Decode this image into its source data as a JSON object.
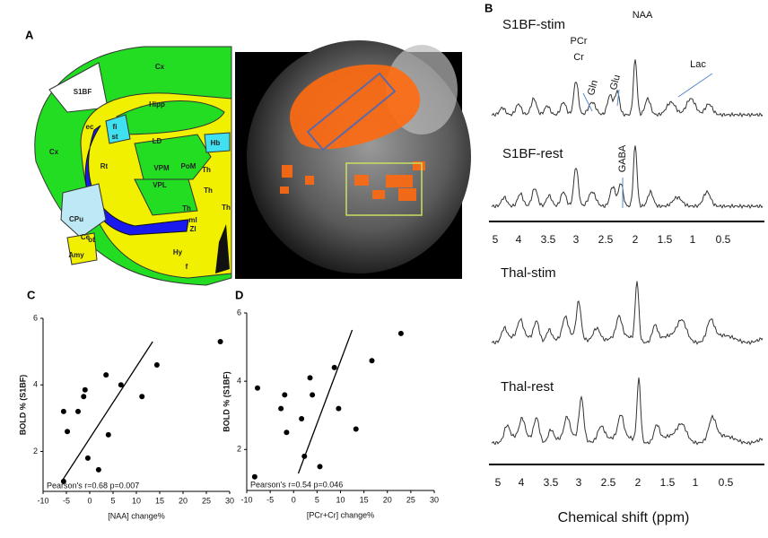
{
  "panels": [
    "A",
    "B",
    "C",
    "D"
  ],
  "atlas_labels": [
    "Cx",
    "S1BF",
    "Hipp",
    "ec",
    "fi",
    "st",
    "LD",
    "Hb",
    "Rt",
    "VPM",
    "PoM",
    "VPL",
    "Th",
    "Th",
    "Th",
    "Th",
    "Cx",
    "CPu",
    "Ce",
    "ml",
    "ZI",
    "Amy",
    "Hy",
    "f",
    "ot"
  ],
  "spectra": {
    "traces": [
      "S1BF-stim",
      "S1BF-rest",
      "Thal-stim",
      "Thal-rest"
    ],
    "peaks": [
      "PCr",
      "Cr",
      "NAA",
      "Gln",
      "Glu",
      "Lac",
      "GABA"
    ],
    "ticks": [
      5,
      4,
      3.5,
      3,
      2.5,
      2,
      1.5,
      1,
      0.5
    ],
    "xlabel": "Chemical shift (ppm)"
  },
  "chart_data": [
    {
      "type": "scatter",
      "xlabel": "[NAA] change%",
      "ylabel": "BOLD % (S1BF)",
      "annotation": "Pearson's r=0.68 p=0.007",
      "x": [
        -5.6,
        -5.6,
        -4.8,
        -2.5,
        -1.3,
        -1,
        -0.4,
        1.9,
        3.5,
        4,
        6.7,
        11.2,
        14.4,
        28
      ],
      "values": [
        1.1,
        3.2,
        2.6,
        3.2,
        3.65,
        3.85,
        1.8,
        1.45,
        4.3,
        2.5,
        4.0,
        3.65,
        4.6,
        5.3
      ],
      "fit": {
        "x": [
          -6,
          13.5
        ],
        "values": [
          1.1,
          5.3
        ]
      },
      "xlim": [
        -10,
        30
      ],
      "ylim": [
        0.8,
        6
      ],
      "xticks": [
        -10,
        -5,
        0,
        5,
        10,
        15,
        20,
        25,
        30
      ],
      "yticks": [
        2,
        4,
        6
      ],
      "color": "#000000"
    },
    {
      "type": "scatter",
      "xlabel": "[PCr+Cr] change%",
      "ylabel": "BOLD % (S1BF)",
      "annotation": "Pearson's r=0.54 p=0.046",
      "x": [
        -7.7,
        -8.3,
        -2.7,
        -1.9,
        -1.5,
        1.7,
        2.3,
        3.5,
        4,
        5.6,
        8.7,
        9.6,
        13.3,
        16.7,
        22.9
      ],
      "values": [
        3.8,
        1.2,
        3.2,
        3.6,
        2.5,
        2.9,
        1.8,
        4.1,
        3.6,
        1.5,
        4.4,
        3.2,
        2.6,
        4.6,
        5.4
      ],
      "fit": {
        "x": [
          1,
          12.5
        ],
        "values": [
          1.3,
          5.5
        ]
      },
      "xlim": [
        -10,
        30
      ],
      "ylim": [
        0.8,
        6
      ],
      "xticks": [
        -10,
        -5,
        0,
        5,
        10,
        15,
        20,
        25,
        30
      ],
      "yticks": [
        2,
        4,
        6
      ],
      "color": "#000000"
    }
  ]
}
